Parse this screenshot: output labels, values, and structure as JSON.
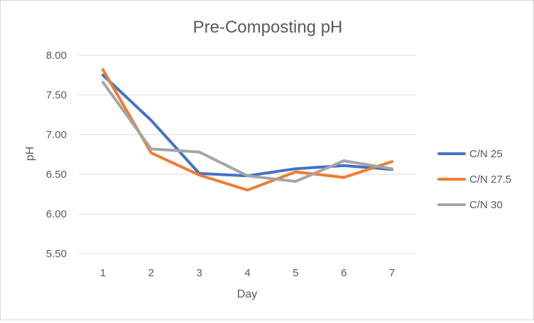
{
  "chart_data": {
    "type": "line",
    "title": "Pre-Composting pH",
    "xlabel": "Day",
    "ylabel": "pH",
    "categories": [
      "1",
      "2",
      "3",
      "4",
      "5",
      "6",
      "7"
    ],
    "y_ticks": [
      "5.50",
      "6.00",
      "6.50",
      "7.00",
      "7.50",
      "8.00"
    ],
    "ylim": [
      5.5,
      8.0
    ],
    "grid": "horizontal",
    "legend_position": "right",
    "series": [
      {
        "name": "C/N 25",
        "color": "#4472c4",
        "values": [
          7.75,
          7.18,
          6.51,
          6.48,
          6.57,
          6.61,
          6.56
        ]
      },
      {
        "name": "C/N 27.5",
        "color": "#ed7d31",
        "values": [
          7.82,
          6.77,
          6.49,
          6.3,
          6.53,
          6.46,
          6.66
        ]
      },
      {
        "name": "C/N 30",
        "color": "#a5a5a5",
        "values": [
          7.66,
          6.82,
          6.78,
          6.48,
          6.41,
          6.67,
          6.57
        ]
      }
    ]
  }
}
